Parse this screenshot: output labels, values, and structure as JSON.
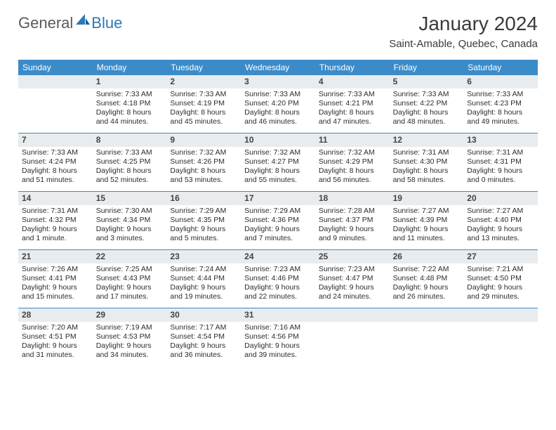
{
  "logo": {
    "textGeneral": "General",
    "textBlue": "Blue"
  },
  "header": {
    "title": "January 2024",
    "location": "Saint-Amable, Quebec, Canada"
  },
  "colors": {
    "headerBar": "#3b8bc9",
    "dayNumBg": "#e9ecef",
    "weekDivider": "#3b8bc9",
    "logoGray": "#5a5a5a",
    "logoBlue": "#2a7ab9"
  },
  "dayNames": [
    "Sunday",
    "Monday",
    "Tuesday",
    "Wednesday",
    "Thursday",
    "Friday",
    "Saturday"
  ],
  "weeks": [
    [
      {
        "n": "",
        "lines": []
      },
      {
        "n": "1",
        "lines": [
          "Sunrise: 7:33 AM",
          "Sunset: 4:18 PM",
          "Daylight: 8 hours and 44 minutes."
        ]
      },
      {
        "n": "2",
        "lines": [
          "Sunrise: 7:33 AM",
          "Sunset: 4:19 PM",
          "Daylight: 8 hours and 45 minutes."
        ]
      },
      {
        "n": "3",
        "lines": [
          "Sunrise: 7:33 AM",
          "Sunset: 4:20 PM",
          "Daylight: 8 hours and 46 minutes."
        ]
      },
      {
        "n": "4",
        "lines": [
          "Sunrise: 7:33 AM",
          "Sunset: 4:21 PM",
          "Daylight: 8 hours and 47 minutes."
        ]
      },
      {
        "n": "5",
        "lines": [
          "Sunrise: 7:33 AM",
          "Sunset: 4:22 PM",
          "Daylight: 8 hours and 48 minutes."
        ]
      },
      {
        "n": "6",
        "lines": [
          "Sunrise: 7:33 AM",
          "Sunset: 4:23 PM",
          "Daylight: 8 hours and 49 minutes."
        ]
      }
    ],
    [
      {
        "n": "7",
        "lines": [
          "Sunrise: 7:33 AM",
          "Sunset: 4:24 PM",
          "Daylight: 8 hours and 51 minutes."
        ]
      },
      {
        "n": "8",
        "lines": [
          "Sunrise: 7:33 AM",
          "Sunset: 4:25 PM",
          "Daylight: 8 hours and 52 minutes."
        ]
      },
      {
        "n": "9",
        "lines": [
          "Sunrise: 7:32 AM",
          "Sunset: 4:26 PM",
          "Daylight: 8 hours and 53 minutes."
        ]
      },
      {
        "n": "10",
        "lines": [
          "Sunrise: 7:32 AM",
          "Sunset: 4:27 PM",
          "Daylight: 8 hours and 55 minutes."
        ]
      },
      {
        "n": "11",
        "lines": [
          "Sunrise: 7:32 AM",
          "Sunset: 4:29 PM",
          "Daylight: 8 hours and 56 minutes."
        ]
      },
      {
        "n": "12",
        "lines": [
          "Sunrise: 7:31 AM",
          "Sunset: 4:30 PM",
          "Daylight: 8 hours and 58 minutes."
        ]
      },
      {
        "n": "13",
        "lines": [
          "Sunrise: 7:31 AM",
          "Sunset: 4:31 PM",
          "Daylight: 9 hours and 0 minutes."
        ]
      }
    ],
    [
      {
        "n": "14",
        "lines": [
          "Sunrise: 7:31 AM",
          "Sunset: 4:32 PM",
          "Daylight: 9 hours and 1 minute."
        ]
      },
      {
        "n": "15",
        "lines": [
          "Sunrise: 7:30 AM",
          "Sunset: 4:34 PM",
          "Daylight: 9 hours and 3 minutes."
        ]
      },
      {
        "n": "16",
        "lines": [
          "Sunrise: 7:29 AM",
          "Sunset: 4:35 PM",
          "Daylight: 9 hours and 5 minutes."
        ]
      },
      {
        "n": "17",
        "lines": [
          "Sunrise: 7:29 AM",
          "Sunset: 4:36 PM",
          "Daylight: 9 hours and 7 minutes."
        ]
      },
      {
        "n": "18",
        "lines": [
          "Sunrise: 7:28 AM",
          "Sunset: 4:37 PM",
          "Daylight: 9 hours and 9 minutes."
        ]
      },
      {
        "n": "19",
        "lines": [
          "Sunrise: 7:27 AM",
          "Sunset: 4:39 PM",
          "Daylight: 9 hours and 11 minutes."
        ]
      },
      {
        "n": "20",
        "lines": [
          "Sunrise: 7:27 AM",
          "Sunset: 4:40 PM",
          "Daylight: 9 hours and 13 minutes."
        ]
      }
    ],
    [
      {
        "n": "21",
        "lines": [
          "Sunrise: 7:26 AM",
          "Sunset: 4:41 PM",
          "Daylight: 9 hours and 15 minutes."
        ]
      },
      {
        "n": "22",
        "lines": [
          "Sunrise: 7:25 AM",
          "Sunset: 4:43 PM",
          "Daylight: 9 hours and 17 minutes."
        ]
      },
      {
        "n": "23",
        "lines": [
          "Sunrise: 7:24 AM",
          "Sunset: 4:44 PM",
          "Daylight: 9 hours and 19 minutes."
        ]
      },
      {
        "n": "24",
        "lines": [
          "Sunrise: 7:23 AM",
          "Sunset: 4:46 PM",
          "Daylight: 9 hours and 22 minutes."
        ]
      },
      {
        "n": "25",
        "lines": [
          "Sunrise: 7:23 AM",
          "Sunset: 4:47 PM",
          "Daylight: 9 hours and 24 minutes."
        ]
      },
      {
        "n": "26",
        "lines": [
          "Sunrise: 7:22 AM",
          "Sunset: 4:48 PM",
          "Daylight: 9 hours and 26 minutes."
        ]
      },
      {
        "n": "27",
        "lines": [
          "Sunrise: 7:21 AM",
          "Sunset: 4:50 PM",
          "Daylight: 9 hours and 29 minutes."
        ]
      }
    ],
    [
      {
        "n": "28",
        "lines": [
          "Sunrise: 7:20 AM",
          "Sunset: 4:51 PM",
          "Daylight: 9 hours and 31 minutes."
        ]
      },
      {
        "n": "29",
        "lines": [
          "Sunrise: 7:19 AM",
          "Sunset: 4:53 PM",
          "Daylight: 9 hours and 34 minutes."
        ]
      },
      {
        "n": "30",
        "lines": [
          "Sunrise: 7:17 AM",
          "Sunset: 4:54 PM",
          "Daylight: 9 hours and 36 minutes."
        ]
      },
      {
        "n": "31",
        "lines": [
          "Sunrise: 7:16 AM",
          "Sunset: 4:56 PM",
          "Daylight: 9 hours and 39 minutes."
        ]
      },
      {
        "n": "",
        "lines": []
      },
      {
        "n": "",
        "lines": []
      },
      {
        "n": "",
        "lines": []
      }
    ]
  ]
}
